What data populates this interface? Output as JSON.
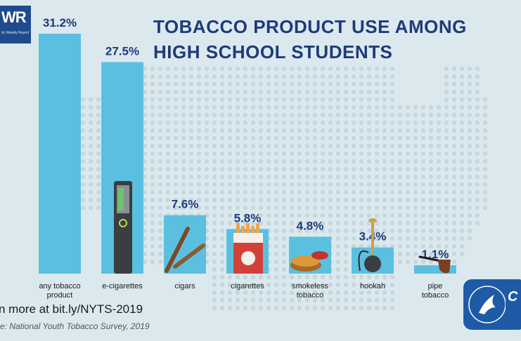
{
  "logo": {
    "text": "WR",
    "subtext": "ity Weekly Report"
  },
  "title": "TOBACCO PRODUCT USE AMONG HIGH SCHOOL STUDENTS",
  "footer": {
    "link_text": "n more at bit.ly/NYTS-2019",
    "source": "e: National Youth Tobacco Survey, 2019"
  },
  "colors": {
    "bar": "#5bc0e0",
    "background": "#dbe9ee",
    "title": "#1f3a7a",
    "value_label": "#1f3a7a",
    "map_dots": "#c5d7de"
  },
  "chart_data": {
    "type": "bar",
    "categories": [
      "any tobacco product",
      "e-cigarettes",
      "cigars",
      "cigarettes",
      "smokeless tobacco",
      "hookah",
      "pipe tobacco"
    ],
    "category_lines": [
      [
        "any tobacco",
        "product"
      ],
      [
        "e-cigarettes"
      ],
      [
        "cigars"
      ],
      [
        "cigarettes"
      ],
      [
        "smokeless",
        "tobacco"
      ],
      [
        "hookah"
      ],
      [
        "pipe",
        "tobacco"
      ]
    ],
    "values": [
      31.2,
      27.5,
      7.6,
      5.8,
      4.8,
      3.4,
      1.1
    ],
    "value_labels": [
      "31.2%",
      "27.5%",
      "7.6%",
      "5.8%",
      "4.8%",
      "3.4%",
      "1.1%"
    ],
    "ylim": [
      0,
      31.2
    ],
    "icons": [
      "",
      "vape-icon",
      "cigars-icon",
      "cigarette-pack-icon",
      "smokeless-tin-icon",
      "hookah-icon",
      "pipe-icon"
    ],
    "grid": false,
    "legend": "none"
  }
}
